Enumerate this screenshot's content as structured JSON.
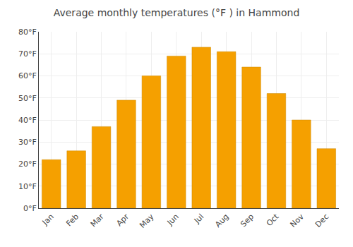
{
  "chart_data": {
    "type": "bar",
    "title": "Average monthly temperatures (°F ) in Hammond",
    "categories": [
      "Jan",
      "Feb",
      "Mar",
      "Apr",
      "May",
      "Jun",
      "Jul",
      "Aug",
      "Sep",
      "Oct",
      "Nov",
      "Dec"
    ],
    "values": [
      22,
      26,
      37,
      49,
      60,
      69,
      73,
      71,
      64,
      52,
      40,
      27
    ],
    "color": "#F5A000",
    "ylim": [
      0,
      80
    ],
    "yticks": [
      {
        "value": 0,
        "label": "0°F"
      },
      {
        "value": 10,
        "label": "10°F"
      },
      {
        "value": 20,
        "label": "20°F"
      },
      {
        "value": 30,
        "label": "30°F"
      },
      {
        "value": 40,
        "label": "40°F"
      },
      {
        "value": 50,
        "label": "50°F"
      },
      {
        "value": 60,
        "label": "60°F"
      },
      {
        "value": 70,
        "label": "70°F"
      },
      {
        "value": 80,
        "label": "80°F"
      }
    ],
    "grid": true
  }
}
